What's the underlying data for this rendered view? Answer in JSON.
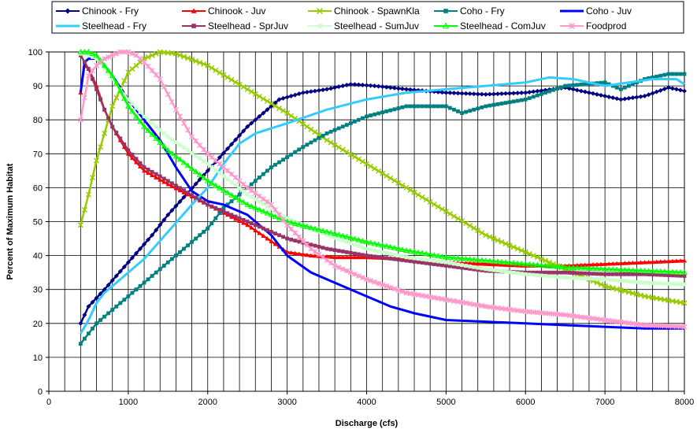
{
  "chart_data": {
    "type": "line",
    "title": "",
    "xlabel": "Discharge (cfs)",
    "ylabel": "Percent of Maximum Habitat",
    "xlim": [
      0,
      8000
    ],
    "ylim": [
      0,
      100
    ],
    "x_ticks": [
      "0",
      "1000",
      "2000",
      "3000",
      "4000",
      "5000",
      "6000",
      "7000",
      "8000"
    ],
    "y_ticks": [
      "0",
      "10",
      "20",
      "30",
      "40",
      "50",
      "60",
      "70",
      "80",
      "90",
      "100"
    ],
    "grid": "vertical every 200 cfs, horizontal every 10%",
    "legend_position": "top",
    "series": [
      {
        "name": "Chinook - Fry",
        "color": "#000080",
        "marker": "diamond",
        "x": [
          400,
          500,
          700,
          1000,
          1300,
          1500,
          2000,
          2500,
          2900,
          3200,
          3500,
          3800,
          4100,
          4500,
          5000,
          5500,
          6000,
          6500,
          7000,
          7200,
          7500,
          7800,
          8000
        ],
        "y": [
          20,
          25,
          30,
          38,
          46,
          52,
          65,
          78,
          86,
          88,
          89,
          90.5,
          90,
          89,
          88,
          87.5,
          88,
          89.5,
          87,
          86,
          87,
          89.5,
          88.5
        ]
      },
      {
        "name": "Chinook - Juv",
        "color": "#ff0000",
        "marker": "triangle",
        "x": [
          400,
          450,
          500,
          600,
          700,
          800,
          1000,
          1200,
          1500,
          2000,
          2500,
          3000,
          3300,
          3600,
          4000,
          4500,
          5000,
          5500,
          6000,
          6500,
          7000,
          7500,
          8000
        ],
        "y": [
          88,
          96,
          95,
          90,
          83,
          78,
          70,
          65,
          61,
          55,
          49,
          41,
          40,
          39.5,
          39.5,
          39,
          38,
          37.5,
          37,
          37,
          37.5,
          38,
          38.5
        ]
      },
      {
        "name": "Chinook - SpawnKla",
        "color": "#99cc00",
        "marker": "x",
        "x": [
          400,
          500,
          600,
          700,
          800,
          1000,
          1200,
          1400,
          1600,
          2000,
          2500,
          3000,
          3500,
          4000,
          4500,
          5000,
          5500,
          6000,
          6500,
          7000,
          7500,
          8000
        ],
        "y": [
          49,
          58,
          68,
          76,
          84,
          94,
          98,
          100,
          99.5,
          96,
          89,
          82,
          74,
          67,
          60,
          53,
          46,
          41,
          36,
          31,
          28,
          26
        ]
      },
      {
        "name": "Coho - Fry",
        "color": "#008080",
        "marker": "square",
        "x": [
          400,
          500,
          600,
          800,
          1000,
          1200,
          1400,
          1600,
          1800,
          2000,
          2200,
          2400,
          2600,
          2800,
          3000,
          3200,
          3500,
          4000,
          4500,
          5000,
          5200,
          5500,
          6000,
          6500,
          7000,
          7200,
          7500,
          7800,
          8000
        ],
        "y": [
          14,
          17,
          20,
          24,
          28,
          32,
          36,
          40,
          44,
          48,
          54,
          58,
          62,
          66,
          69,
          72,
          76,
          81,
          84,
          84,
          82,
          84,
          86,
          90,
          91,
          89,
          92,
          93.5,
          93.5
        ]
      },
      {
        "name": "Coho - Juv",
        "color": "#0000ff",
        "marker": "none",
        "x": [
          400,
          450,
          500,
          600,
          700,
          800,
          1000,
          1200,
          1400,
          1600,
          1800,
          2000,
          2200,
          2500,
          2800,
          3000,
          3300,
          3600,
          4000,
          4300,
          4600,
          5000,
          5500,
          6000,
          6500,
          7000,
          7500,
          8000
        ],
        "y": [
          88,
          97,
          98,
          98,
          96,
          93,
          86,
          80,
          74,
          66,
          59,
          56,
          55,
          52,
          46,
          40,
          35,
          32,
          28,
          25,
          23,
          21,
          20.5,
          20,
          19.5,
          19,
          18.5,
          18.5
        ]
      },
      {
        "name": "Steelhead - Fry",
        "color": "#33ccff",
        "marker": "none",
        "x": [
          400,
          500,
          600,
          700,
          800,
          1000,
          1200,
          1500,
          1800,
          2000,
          2200,
          2400,
          2600,
          3000,
          3500,
          4000,
          4500,
          5000,
          5500,
          6000,
          6300,
          6600,
          7000,
          7300,
          7600,
          7900,
          8000
        ],
        "y": [
          17,
          21,
          26,
          29,
          31,
          35,
          39,
          47,
          55,
          60,
          67,
          73,
          76,
          79,
          83,
          86,
          88,
          89,
          90,
          91,
          92.5,
          92,
          90,
          91,
          92,
          92,
          90.5
        ]
      },
      {
        "name": "Steelhead - SprJuv",
        "color": "#993366",
        "marker": "square",
        "x": [
          400,
          450,
          500,
          600,
          700,
          800,
          1000,
          1200,
          1500,
          2000,
          2500,
          3000,
          3500,
          4000,
          4500,
          5000,
          5500,
          6000,
          6500,
          7000,
          7500,
          8000
        ],
        "y": [
          99,
          97,
          95,
          89,
          83,
          78,
          71,
          66,
          62,
          55,
          50,
          45,
          42,
          40,
          38.5,
          37,
          35.5,
          35,
          35,
          34.5,
          34.5,
          34
        ]
      },
      {
        "name": "Steelhead - SumJuv",
        "color": "#ccffcc",
        "marker": "square",
        "x": [
          400,
          500,
          600,
          800,
          1000,
          1200,
          1500,
          2000,
          2500,
          3000,
          3500,
          4000,
          4500,
          5000,
          5500,
          6000,
          6500,
          7000,
          7500,
          8000
        ],
        "y": [
          99.5,
          99,
          98,
          92,
          86,
          81,
          75,
          67,
          58,
          51,
          46,
          42,
          39.5,
          38,
          36,
          34.5,
          33.5,
          33,
          32,
          31.5
        ]
      },
      {
        "name": "Steelhead - ComJuv",
        "color": "#00ff00",
        "marker": "triangle-open",
        "x": [
          400,
          500,
          600,
          800,
          1000,
          1200,
          1500,
          2000,
          2500,
          3000,
          3500,
          4000,
          4500,
          5000,
          5500,
          6000,
          6500,
          7000,
          7500,
          8000
        ],
        "y": [
          100,
          100,
          99,
          93,
          84,
          78,
          71,
          62,
          55,
          50,
          47,
          44,
          41.5,
          39.5,
          38.5,
          37.5,
          36.5,
          36,
          35.5,
          35
        ]
      },
      {
        "name": "Foodprod",
        "color": "#ff99cc",
        "marker": "star",
        "x": [
          400,
          500,
          600,
          700,
          800,
          900,
          1000,
          1100,
          1200,
          1400,
          1600,
          1800,
          2000,
          2200,
          2500,
          2800,
          3000,
          3300,
          3600,
          4000,
          4500,
          5000,
          5500,
          6000,
          6500,
          7000,
          7500,
          8000
        ],
        "y": [
          80,
          93,
          96,
          98,
          99,
          100,
          100,
          99,
          97,
          92,
          83,
          75,
          70,
          66,
          60,
          55,
          49,
          42,
          37,
          33,
          29,
          27,
          25,
          23.5,
          22.5,
          21,
          19.5,
          19
        ]
      }
    ]
  }
}
